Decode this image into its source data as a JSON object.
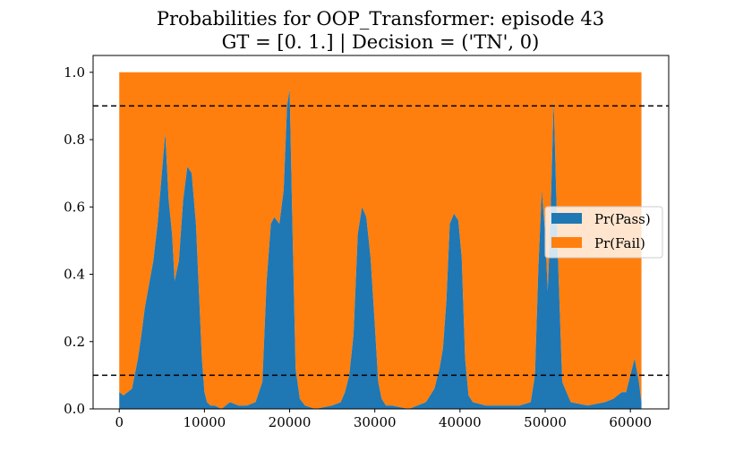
{
  "title": {
    "line1": "Probabilities for OOP_Transformer: episode 43",
    "line2": "GT = [0. 1.] | Decision = ('TN', 0)"
  },
  "colors": {
    "pass": "#1f77b4",
    "fail": "#ff7f0e",
    "threshold": "#000000"
  },
  "chart_data": {
    "type": "area",
    "stacked": true,
    "xlim": [
      -3070,
      64500
    ],
    "ylim": [
      0.0,
      1.05
    ],
    "xticks": [
      0,
      10000,
      20000,
      30000,
      40000,
      50000,
      60000
    ],
    "xtick_labels": [
      "0",
      "10000",
      "20000",
      "30000",
      "40000",
      "50000",
      "60000"
    ],
    "yticks": [
      0.0,
      0.2,
      0.4,
      0.6,
      0.8,
      1.0
    ],
    "ytick_labels": [
      "0.0",
      "0.2",
      "0.4",
      "0.6",
      "0.8",
      "1.0"
    ],
    "grid": false,
    "legend_position": "center-right",
    "thresholds": [
      0.9,
      0.1
    ],
    "series": [
      {
        "name": "Pr(Pass)",
        "x": [
          0,
          500,
          1500,
          2200,
          2600,
          3000,
          3500,
          4000,
          4500,
          5000,
          5400,
          5800,
          6200,
          6500,
          7000,
          7500,
          8000,
          8500,
          9000,
          9300,
          9700,
          10000,
          10300,
          10700,
          11200,
          12000,
          13000,
          14000,
          15000,
          16000,
          16800,
          17300,
          17800,
          18200,
          18800,
          19300,
          19700,
          20000,
          20300,
          20700,
          21200,
          21800,
          23000,
          25000,
          26000,
          26500,
          27000,
          27500,
          28000,
          28500,
          29000,
          29500,
          30000,
          30400,
          30800,
          31300,
          32000,
          34000,
          36000,
          37000,
          37600,
          38000,
          38400,
          38800,
          39300,
          39800,
          40200,
          40600,
          41000,
          41500,
          43000,
          45000,
          47000,
          48300,
          48800,
          49200,
          49600,
          50000,
          50300,
          50600,
          51000,
          51500,
          52000,
          53000,
          55000,
          57000,
          58000,
          59000,
          59500,
          60000,
          60500,
          61000,
          61300
        ],
        "values": [
          0.05,
          0.04,
          0.06,
          0.15,
          0.22,
          0.3,
          0.37,
          0.44,
          0.55,
          0.7,
          0.82,
          0.62,
          0.52,
          0.38,
          0.44,
          0.62,
          0.72,
          0.7,
          0.55,
          0.38,
          0.15,
          0.05,
          0.02,
          0.01,
          0.01,
          0.0,
          0.02,
          0.01,
          0.01,
          0.02,
          0.08,
          0.38,
          0.55,
          0.57,
          0.55,
          0.65,
          0.9,
          0.95,
          0.58,
          0.12,
          0.03,
          0.01,
          0.0,
          0.01,
          0.02,
          0.05,
          0.1,
          0.22,
          0.52,
          0.6,
          0.57,
          0.45,
          0.25,
          0.08,
          0.03,
          0.01,
          0.01,
          0.0,
          0.02,
          0.06,
          0.12,
          0.18,
          0.32,
          0.55,
          0.58,
          0.56,
          0.45,
          0.15,
          0.04,
          0.02,
          0.01,
          0.01,
          0.01,
          0.02,
          0.1,
          0.42,
          0.65,
          0.52,
          0.35,
          0.55,
          0.92,
          0.45,
          0.08,
          0.02,
          0.01,
          0.02,
          0.03,
          0.05,
          0.05,
          0.1,
          0.15,
          0.08,
          0.02
        ]
      },
      {
        "name": "Pr(Fail)",
        "note": "Complement of Pr(Pass); stacked to total 1.0"
      }
    ]
  }
}
